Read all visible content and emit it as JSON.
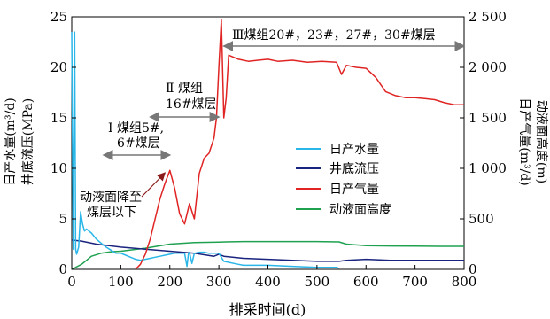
{
  "chart_data": {
    "type": "line",
    "xlabel": "排采时间(d)",
    "ylabel_left": [
      "日产水量(m³/d)",
      "井底流压(MPa)"
    ],
    "ylabel_right": [
      "日产气量(m³/d)",
      "动液面高度(m)"
    ],
    "xlim": [
      0,
      800
    ],
    "ylim_left": [
      0,
      25
    ],
    "ylim_right": [
      0,
      2500
    ],
    "x_ticks": [
      "0",
      "100",
      "200",
      "300",
      "400",
      "500",
      "600",
      "700",
      "800"
    ],
    "y_left_ticks": [
      "0",
      "5",
      "10",
      "15",
      "20",
      "25"
    ],
    "y_right_ticks": [
      "0",
      "500",
      "1 000",
      "1 500",
      "2 000",
      "2 500"
    ],
    "legend": {
      "position": "center-right",
      "entries": [
        "日产水量",
        "井底流压",
        "日产气量",
        "动液面高度"
      ]
    },
    "series": [
      {
        "name": "日产水量",
        "axis": "left",
        "color": "#29b6e8",
        "x": [
          0,
          3,
          6,
          8,
          10,
          14,
          18,
          22,
          26,
          30,
          40,
          50,
          60,
          70,
          80,
          90,
          100,
          110,
          120,
          130,
          140,
          150,
          160,
          170,
          180,
          190,
          200,
          210,
          220,
          230,
          235,
          238,
          240,
          245,
          250,
          260,
          270,
          280,
          290,
          300,
          305,
          310,
          320,
          330,
          340,
          350,
          400,
          450,
          500,
          540,
          545
        ],
        "values": [
          23.5,
          2.0,
          23.5,
          2.0,
          1.5,
          2.2,
          5.7,
          4.5,
          3.8,
          4.0,
          3.6,
          3.0,
          2.6,
          2.2,
          1.9,
          1.6,
          1.6,
          1.4,
          1.2,
          1.0,
          0.9,
          1.0,
          1.1,
          1.2,
          1.3,
          1.4,
          1.5,
          1.6,
          1.6,
          1.6,
          0.3,
          1.6,
          1.7,
          0.6,
          1.6,
          1.7,
          1.7,
          1.6,
          1.6,
          1.6,
          1.2,
          0.8,
          0.7,
          0.6,
          0.5,
          0.4,
          0.4,
          0.3,
          0.2,
          0.2,
          0.1
        ]
      },
      {
        "name": "井底流压",
        "axis": "left",
        "color": "#1a237e",
        "x": [
          0,
          20,
          50,
          100,
          150,
          200,
          250,
          290,
          300,
          310,
          350,
          400,
          450,
          500,
          545,
          560,
          600,
          650,
          700,
          750,
          800
        ],
        "values": [
          2.9,
          2.8,
          2.5,
          2.2,
          2.0,
          1.8,
          1.6,
          1.3,
          1.5,
          1.3,
          1.1,
          1.0,
          0.9,
          0.8,
          0.8,
          0.9,
          1.0,
          0.9,
          0.9,
          0.9,
          0.9
        ]
      },
      {
        "name": "日产气量",
        "axis": "right",
        "color": "#e02424",
        "x": [
          130,
          140,
          150,
          160,
          170,
          180,
          190,
          200,
          210,
          220,
          230,
          240,
          250,
          260,
          270,
          280,
          290,
          295,
          300,
          305,
          310,
          315,
          320,
          340,
          360,
          380,
          400,
          420,
          450,
          480,
          510,
          540,
          550,
          560,
          580,
          600,
          620,
          640,
          660,
          680,
          700,
          720,
          740,
          760,
          780,
          800
        ],
        "values": [
          0,
          50,
          150,
          300,
          500,
          700,
          850,
          980,
          800,
          550,
          450,
          650,
          500,
          950,
          1100,
          1150,
          1300,
          1500,
          2000,
          2470,
          1500,
          1700,
          2120,
          2080,
          2060,
          2070,
          2080,
          2060,
          2070,
          2050,
          2060,
          2050,
          1930,
          2020,
          2000,
          1990,
          1900,
          1760,
          1720,
          1700,
          1700,
          1690,
          1680,
          1650,
          1630,
          1630
        ]
      },
      {
        "name": "动液面高度",
        "axis": "right",
        "color": "#1fa150",
        "x": [
          0,
          20,
          40,
          60,
          80,
          100,
          150,
          200,
          250,
          300,
          350,
          400,
          450,
          500,
          545,
          560,
          600,
          650,
          700,
          750,
          800
        ],
        "values": [
          0,
          50,
          130,
          160,
          175,
          180,
          210,
          250,
          265,
          270,
          275,
          275,
          275,
          275,
          272,
          250,
          235,
          232,
          230,
          228,
          228
        ]
      }
    ],
    "annotations": [
      {
        "text": "动液面降至",
        "text2": "煤层以下",
        "arrow_to": [
          190,
          990
        ]
      },
      {
        "text": "Ⅰ 煤组5#,",
        "text2": "6#煤层",
        "span": [
          65,
          200
        ]
      },
      {
        "text": "Ⅱ 煤组",
        "text2": "16#煤层",
        "span": [
          160,
          300
        ]
      },
      {
        "text": "Ⅲ煤组20#，23#，27#，30#煤层",
        "span": [
          310,
          800
        ]
      }
    ]
  }
}
